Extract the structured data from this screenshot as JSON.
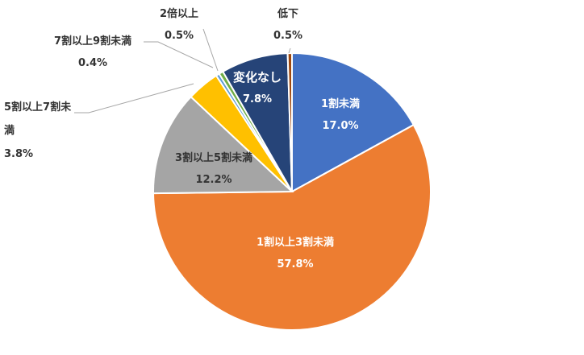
{
  "chart_data": {
    "type": "pie",
    "categories": [
      "1割未満",
      "1割以上3割未満",
      "3割以上5割未満",
      "5割以上7割未満",
      "7割以上9割未満",
      "2倍以上",
      "変化なし",
      "低下"
    ],
    "values": [
      17.0,
      57.8,
      12.2,
      3.8,
      0.4,
      0.5,
      7.8,
      0.5
    ],
    "value_labels": [
      "17.0%",
      "57.8%",
      "12.2%",
      "3.8%",
      "0.4%",
      "0.5%",
      "7.8%",
      "0.5%"
    ],
    "colors": [
      "#4472c4",
      "#ed7d31",
      "#a5a5a5",
      "#ffc000",
      "#5b9bd5",
      "#70ad47",
      "#264478",
      "#9e480e"
    ]
  }
}
